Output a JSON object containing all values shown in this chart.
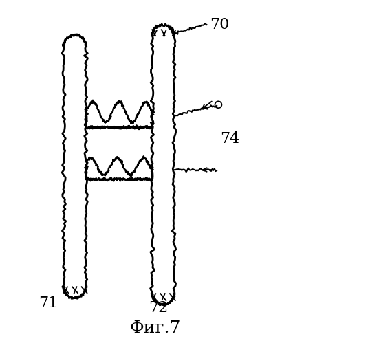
{
  "title": "Фиг.7",
  "bg_color": "#ffffff",
  "label_70": "70",
  "label_71": "71",
  "label_72": "72",
  "label_74": "74",
  "title_fontsize": 18,
  "label_fontsize": 16
}
